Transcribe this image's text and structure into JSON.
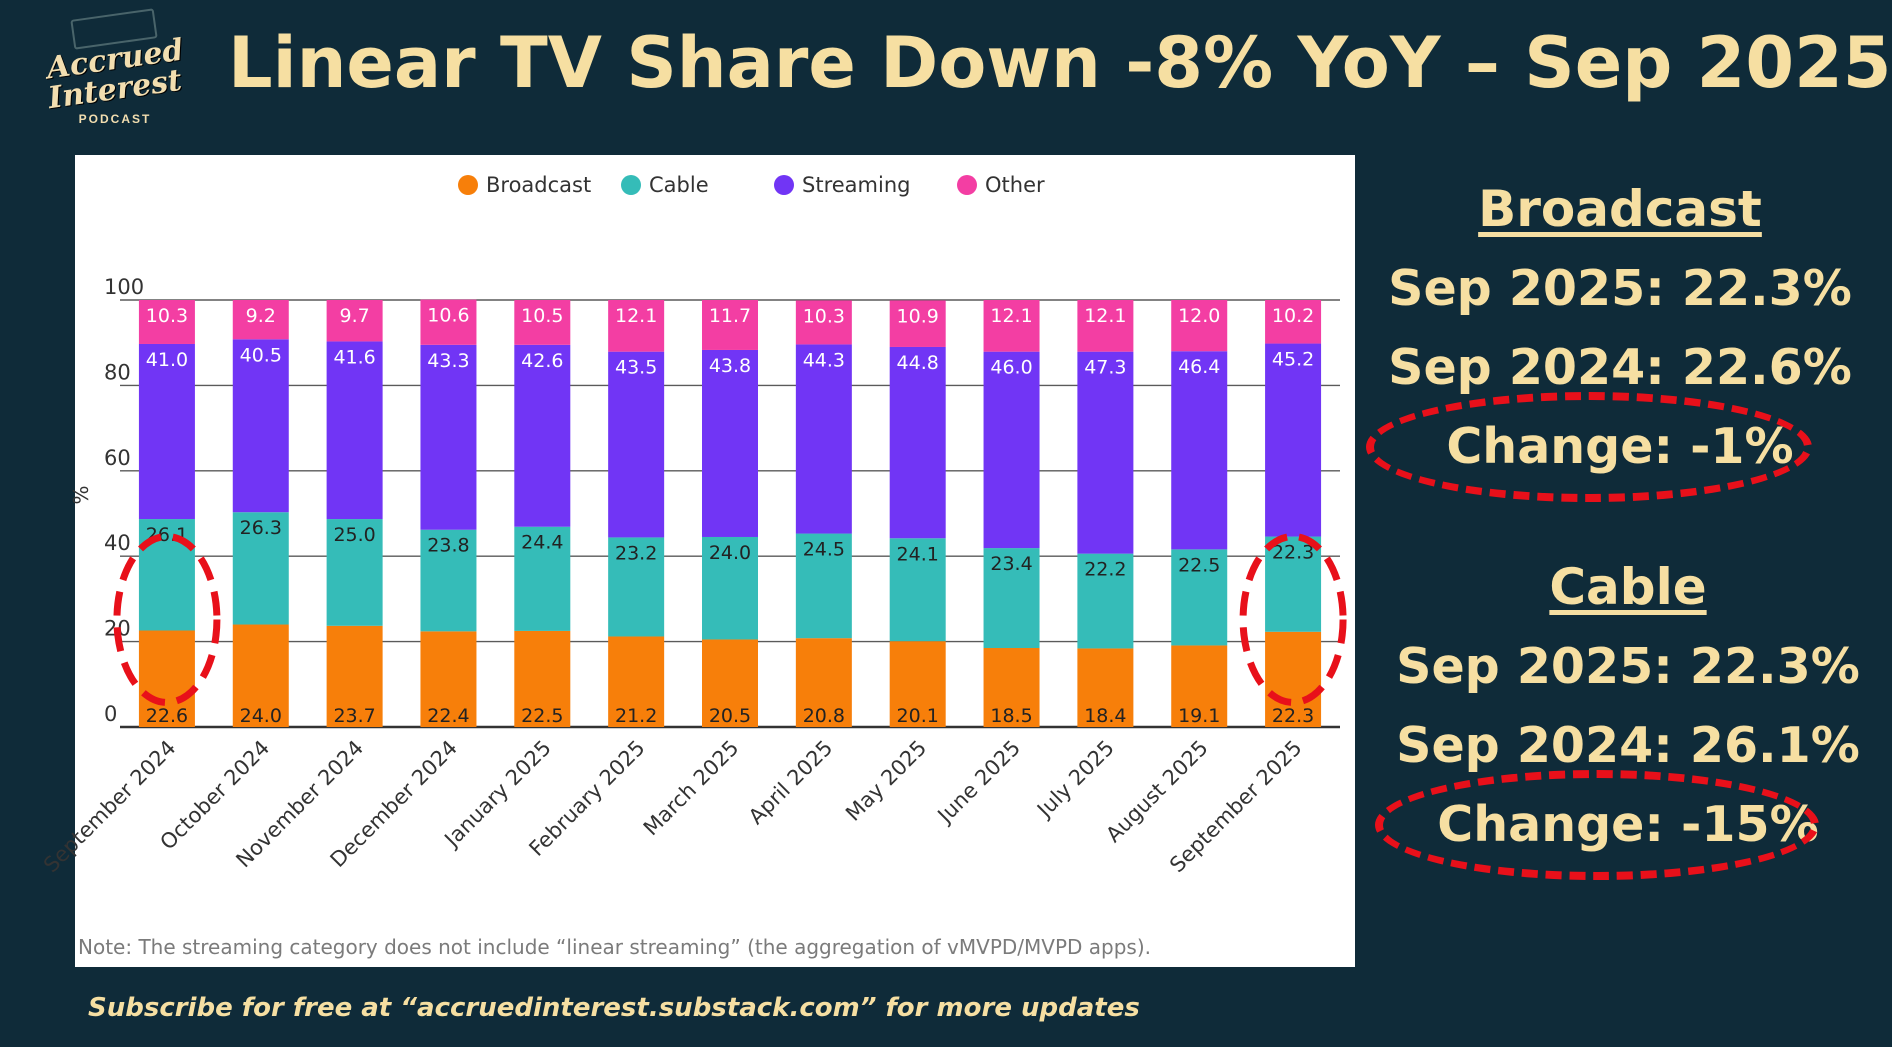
{
  "logo": {
    "line1": "Accrued",
    "line2": "Interest",
    "line3": "PODCAST"
  },
  "title": "Linear TV Share Down -8% YoY – Sep 2025",
  "colors": {
    "broadcast": "#f77f0a",
    "cable": "#35bcb8",
    "streaming": "#7135f5",
    "other": "#f33ea3",
    "accent": "#f6dfa2",
    "highlight": "#e8101a"
  },
  "chart_data": {
    "type": "bar",
    "stacked": true,
    "ylabel": "%",
    "ylim": [
      0,
      100
    ],
    "yticks": [
      0,
      20,
      40,
      60,
      80,
      100
    ],
    "categories": [
      "September 2024",
      "October 2024",
      "November 2024",
      "December 2024",
      "January 2025",
      "February 2025",
      "March 2025",
      "April 2025",
      "May 2025",
      "June 2025",
      "July 2025",
      "August 2025",
      "September 2025"
    ],
    "series": [
      {
        "name": "Broadcast",
        "values": [
          22.6,
          24.0,
          23.7,
          22.4,
          22.5,
          21.2,
          20.5,
          20.8,
          20.1,
          18.5,
          18.4,
          19.1,
          22.3
        ]
      },
      {
        "name": "Cable",
        "values": [
          26.1,
          26.3,
          25.0,
          23.8,
          24.4,
          23.2,
          24.0,
          24.5,
          24.1,
          23.4,
          22.2,
          22.5,
          22.3
        ]
      },
      {
        "name": "Streaming",
        "values": [
          41.0,
          40.5,
          41.6,
          43.3,
          42.6,
          43.5,
          43.8,
          44.3,
          44.8,
          46.0,
          47.3,
          46.4,
          45.2
        ]
      },
      {
        "name": "Other",
        "values": [
          10.3,
          9.2,
          9.7,
          10.6,
          10.5,
          12.1,
          11.7,
          10.3,
          10.9,
          12.1,
          12.1,
          12.0,
          10.2
        ]
      }
    ],
    "legend": "top-center",
    "highlighted_categories": [
      "September 2024",
      "September 2025"
    ],
    "note": "Note: The streaming category does not include “linear streaming” (the aggregation of vMVPD/MVPD apps)."
  },
  "broadcast_panel": {
    "heading": "Broadcast",
    "line1": "Sep 2025: 22.3%",
    "line2": "Sep 2024: 22.6%",
    "change": "Change: -1%"
  },
  "cable_panel": {
    "heading": "Cable",
    "line1": "Sep 2025: 22.3%",
    "line2": "Sep 2024: 26.1%",
    "change": "Change: -15%"
  },
  "footer": "Subscribe for free at “accruedinterest.substack.com” for more updates"
}
